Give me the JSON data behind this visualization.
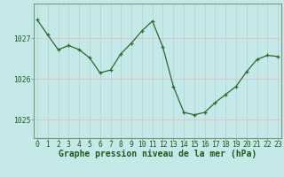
{
  "x": [
    0,
    1,
    2,
    3,
    4,
    5,
    6,
    7,
    8,
    9,
    10,
    11,
    12,
    13,
    14,
    15,
    16,
    17,
    18,
    19,
    20,
    21,
    22,
    23
  ],
  "y": [
    1027.45,
    1027.08,
    1026.72,
    1026.82,
    1026.72,
    1026.52,
    1026.15,
    1026.22,
    1026.62,
    1026.88,
    1027.18,
    1027.42,
    1026.78,
    1025.82,
    1025.18,
    1025.12,
    1025.18,
    1025.42,
    1025.62,
    1025.82,
    1026.18,
    1026.48,
    1026.58,
    1026.55
  ],
  "line_color": "#2d6a2d",
  "marker_color": "#2d6a2d",
  "bg_color": "#c5e8e8",
  "hgrid_color": "#e8c0c0",
  "vgrid_color": "#b8d8d8",
  "border_color": "#7a9a7a",
  "text_color": "#1a5c1a",
  "ylabel_ticks": [
    1025,
    1026,
    1027
  ],
  "xlabel_label": "Graphe pression niveau de la mer (hPa)",
  "ylim": [
    1024.55,
    1027.85
  ],
  "xlim": [
    -0.3,
    23.3
  ],
  "tick_fontsize": 5.8,
  "label_fontsize": 7.0
}
